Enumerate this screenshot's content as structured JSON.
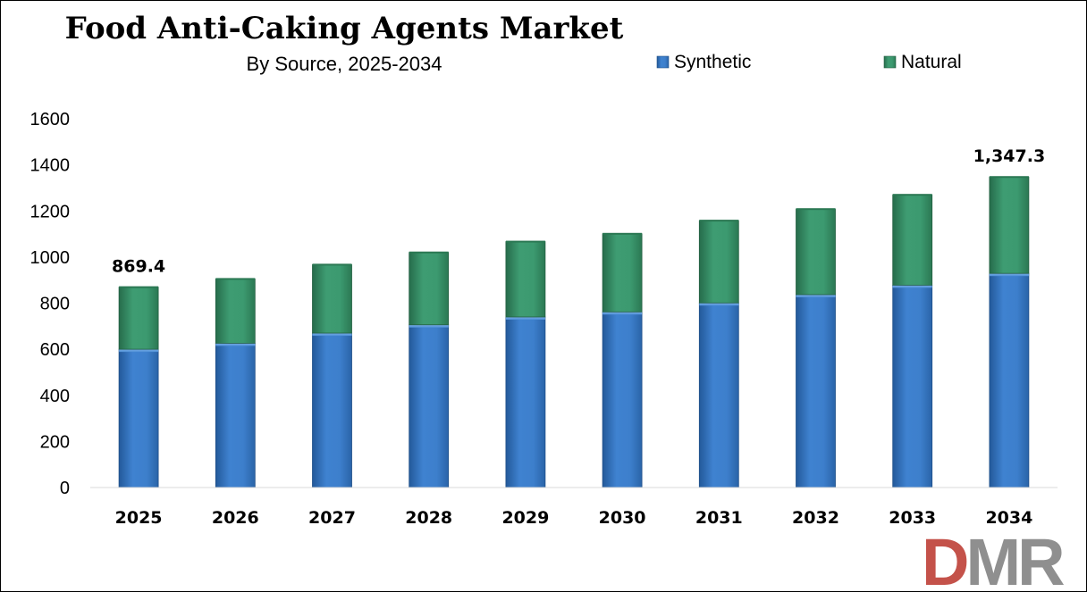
{
  "chart_data": {
    "type": "bar",
    "stacked": true,
    "title": "Food Anti-Caking Agents Market",
    "subtitle": "By Source, 2025-2034",
    "categories": [
      "2025",
      "2026",
      "2027",
      "2028",
      "2029",
      "2030",
      "2031",
      "2032",
      "2033",
      "2034"
    ],
    "series": [
      {
        "name": "Synthetic",
        "color": "#3d7fcc",
        "values": [
          600,
          626,
          670,
          706,
          740,
          762,
          801,
          837,
          878,
          929
        ]
      },
      {
        "name": "Natural",
        "color": "#3c9a70",
        "values": [
          269.4,
          279,
          297,
          314,
          327,
          339,
          357,
          371,
          392,
          418.3
        ]
      }
    ],
    "data_labels": [
      {
        "category": "2025",
        "text": "869.4"
      },
      {
        "category": "2034",
        "text": "1,347.3"
      }
    ],
    "yticks": [
      "0",
      "200",
      "400",
      "600",
      "800",
      "1000",
      "1200",
      "1400",
      "1600"
    ],
    "ylim": [
      0,
      1600
    ],
    "xlabel": "",
    "ylabel": "",
    "grid": false,
    "legend_position": "top-right"
  },
  "logo": {
    "text": "DMR",
    "colors": {
      "D": "#c4524a",
      "M": "#8f8f8f",
      "R": "#8f8f8f"
    }
  }
}
